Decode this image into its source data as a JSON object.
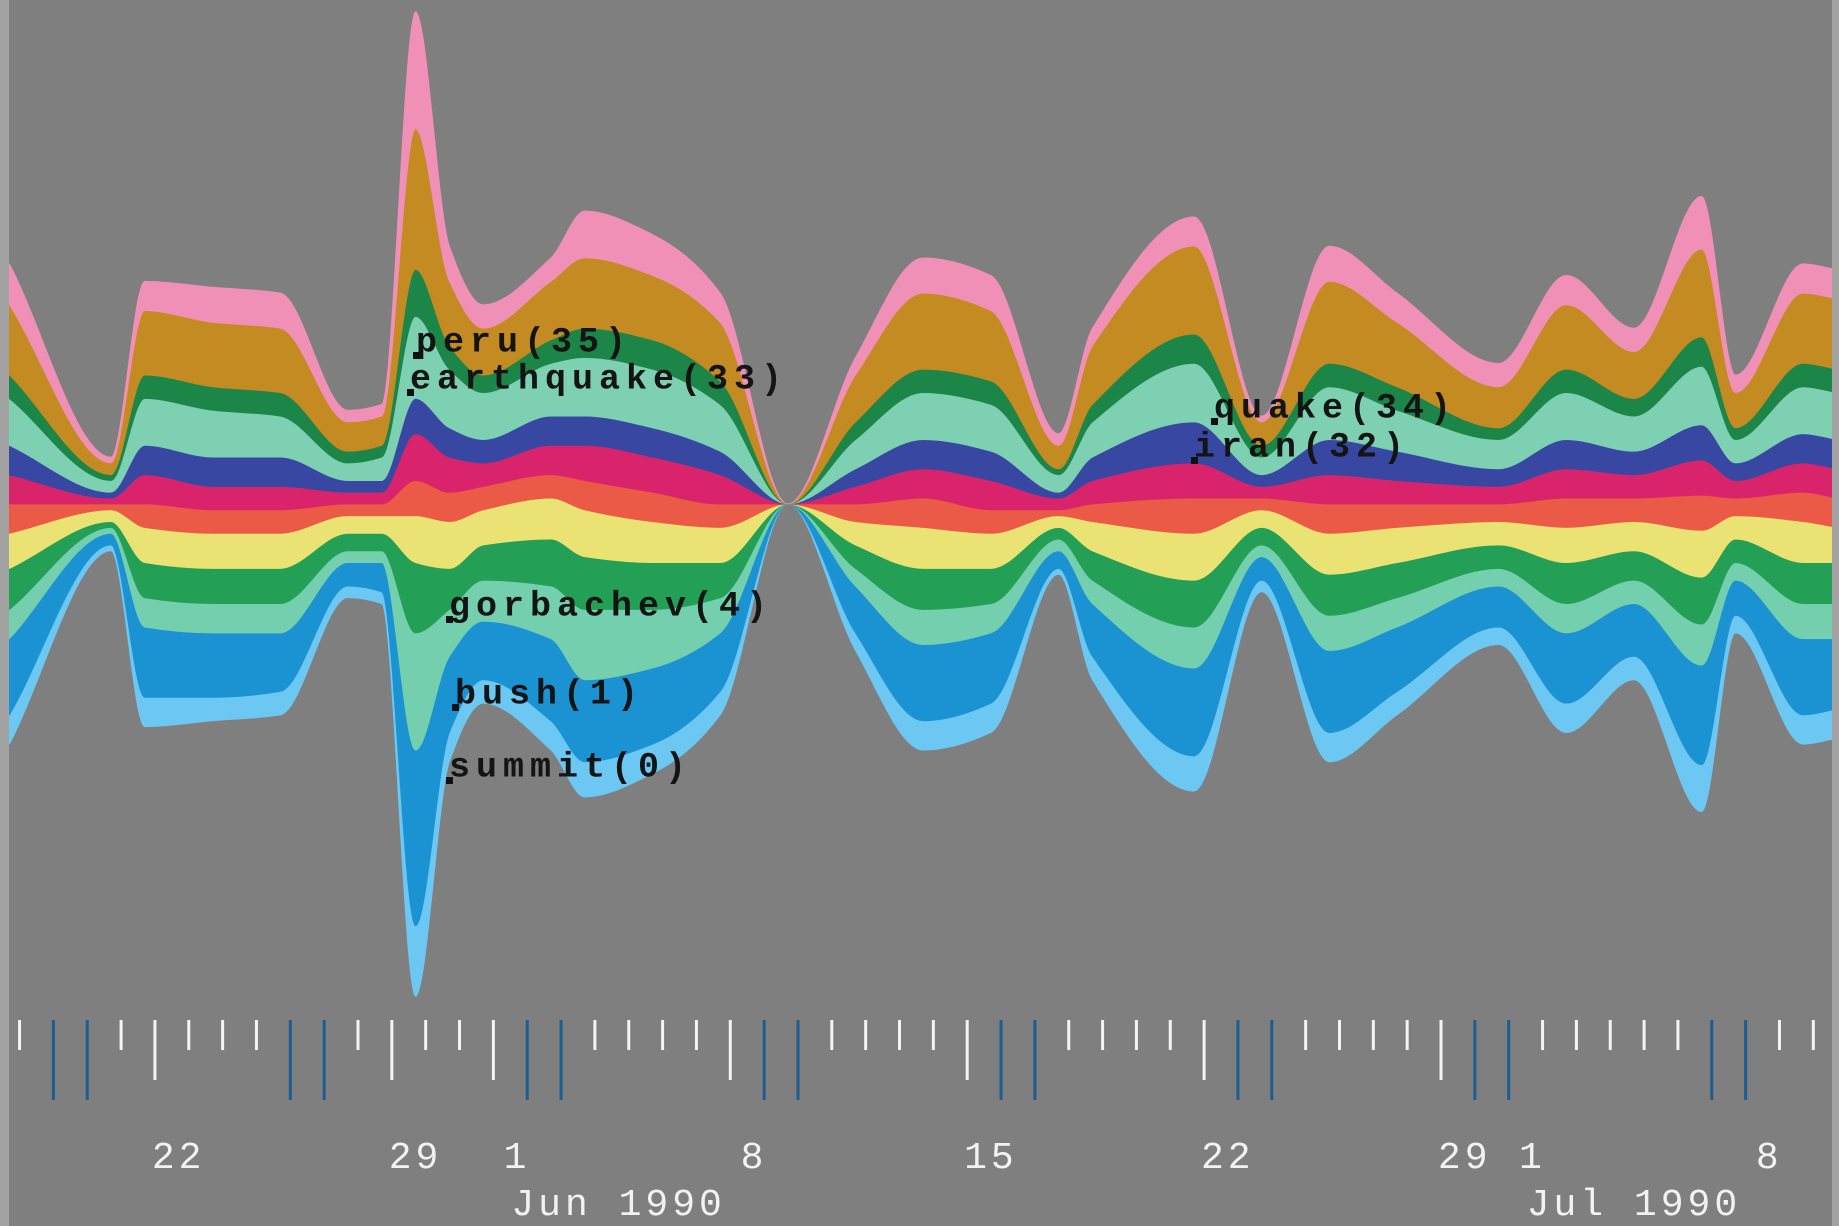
{
  "chart_data": {
    "type": "streamgraph",
    "x": [
      "1990-05-17",
      "1990-05-20",
      "1990-05-21",
      "1990-05-23",
      "1990-05-25",
      "1990-05-27",
      "1990-05-28",
      "1990-05-29",
      "1990-05-30",
      "1990-05-31",
      "1990-06-02",
      "1990-06-03",
      "1990-06-05",
      "1990-06-07",
      "1990-06-09",
      "1990-06-11",
      "1990-06-13",
      "1990-06-15",
      "1990-06-17",
      "1990-06-18",
      "1990-06-21",
      "1990-06-23",
      "1990-06-25",
      "1990-06-27",
      "1990-06-30",
      "1990-07-02",
      "1990-07-04",
      "1990-07-06",
      "1990-07-07",
      "1990-07-09",
      "1990-07-10"
    ],
    "xlim": [
      "1990-05-17",
      "1990-07-10"
    ],
    "xticks": [
      {
        "value": "1990-05-22",
        "label": "22"
      },
      {
        "value": "1990-05-29",
        "label": "29"
      },
      {
        "value": "1990-06-01",
        "label": "1"
      },
      {
        "value": "1990-06-08",
        "label": "8"
      },
      {
        "value": "1990-06-15",
        "label": "15"
      },
      {
        "value": "1990-06-22",
        "label": "22"
      },
      {
        "value": "1990-06-29",
        "label": "29"
      },
      {
        "value": "1990-07-01",
        "label": "1"
      },
      {
        "value": "1990-07-08",
        "label": "8"
      }
    ],
    "month_labels": [
      {
        "value": "1990-06-01",
        "label": "Jun 1990"
      },
      {
        "value": "1990-07-01",
        "label": "Jul 1990"
      }
    ],
    "series": [
      {
        "color": "#6cc8f2",
        "values": [
          5,
          1,
          5,
          4,
          4,
          2,
          2,
          12,
          5,
          4,
          5,
          6,
          5,
          4,
          0,
          3,
          5,
          5,
          1,
          4,
          6,
          2,
          5,
          4,
          3,
          5,
          4,
          8,
          3,
          5,
          5
        ]
      },
      {
        "color": "#1b93d3",
        "values": [
          13,
          2,
          12,
          11,
          10,
          4,
          5,
          30,
          13,
          10,
          14,
          14,
          13,
          10,
          0,
          8,
          13,
          12,
          3,
          9,
          15,
          4,
          14,
          11,
          7,
          12,
          9,
          17,
          6,
          13,
          12
        ]
      },
      {
        "color": "#74cfae",
        "values": [
          5,
          1,
          5,
          5,
          5,
          2,
          2,
          20,
          8,
          7,
          9,
          12,
          10,
          6,
          0,
          3,
          6,
          5,
          2,
          4,
          7,
          2,
          6,
          5,
          3,
          5,
          4,
          7,
          3,
          6,
          6
        ]
      },
      {
        "color": "#23a055",
        "values": [
          7,
          1,
          6,
          6,
          6,
          3,
          3,
          12,
          7,
          6,
          8,
          9,
          8,
          6,
          0,
          4,
          7,
          6,
          2,
          5,
          8,
          3,
          7,
          6,
          4,
          7,
          5,
          8,
          4,
          7,
          7
        ]
      },
      {
        "color": "#ebe274",
        "values": [
          6,
          2,
          6,
          6,
          6,
          3,
          3,
          8,
          8,
          6,
          7,
          8,
          7,
          6,
          0,
          4,
          7,
          6,
          2,
          5,
          8,
          3,
          7,
          6,
          4,
          6,
          5,
          8,
          4,
          7,
          6
        ]
      },
      {
        "color": "#ea5a46",
        "values": [
          5,
          1,
          4,
          4,
          4,
          2,
          2,
          6,
          5,
          4,
          4,
          5,
          5,
          4,
          0,
          3,
          5,
          4,
          1,
          3,
          6,
          2,
          5,
          4,
          3,
          5,
          4,
          6,
          3,
          5,
          5
        ]
      },
      {
        "color": "#d9246c",
        "values": [
          5,
          1,
          5,
          4,
          4,
          2,
          2,
          8,
          6,
          4,
          5,
          6,
          6,
          5,
          0,
          3,
          5,
          5,
          2,
          4,
          6,
          2,
          5,
          4,
          3,
          5,
          4,
          6,
          3,
          5,
          5
        ]
      },
      {
        "color": "#3848a2",
        "values": [
          5,
          1,
          5,
          5,
          5,
          2,
          2,
          6,
          5,
          4,
          5,
          5,
          5,
          4,
          0,
          3,
          5,
          5,
          1,
          4,
          7,
          2,
          6,
          5,
          3,
          5,
          4,
          6,
          3,
          5,
          5
        ]
      },
      {
        "color": "#7dd0b2",
        "values": [
          8,
          2,
          8,
          8,
          7,
          3,
          4,
          14,
          10,
          8,
          9,
          10,
          10,
          8,
          0,
          5,
          8,
          8,
          3,
          6,
          10,
          3,
          9,
          7,
          5,
          8,
          6,
          10,
          4,
          8,
          8
        ]
      },
      {
        "color": "#1c8548",
        "values": [
          4,
          1,
          4,
          4,
          4,
          2,
          2,
          8,
          4,
          3,
          4,
          5,
          5,
          4,
          0,
          3,
          4,
          4,
          1,
          3,
          5,
          2,
          4,
          4,
          2,
          4,
          3,
          5,
          2,
          4,
          4
        ]
      },
      {
        "color": "#c48b22",
        "values": [
          12,
          2,
          11,
          11,
          11,
          5,
          5,
          24,
          11,
          8,
          10,
          12,
          11,
          10,
          0,
          8,
          13,
          12,
          4,
          10,
          15,
          4,
          14,
          11,
          7,
          11,
          8,
          15,
          6,
          12,
          12
        ]
      },
      {
        "color": "#f190b6",
        "values": [
          7,
          1,
          5,
          6,
          6,
          2,
          2,
          20,
          6,
          4,
          4,
          8,
          7,
          5,
          0,
          3,
          6,
          6,
          2,
          3,
          5,
          1,
          6,
          5,
          4,
          5,
          4,
          9,
          3,
          5,
          5
        ]
      }
    ],
    "annotations": [
      "peru(35)",
      "earthquake(33)",
      "quake(34)",
      "iran(32)",
      "gorbachev(4)",
      "bush(1)",
      "summit(0)"
    ]
  }
}
